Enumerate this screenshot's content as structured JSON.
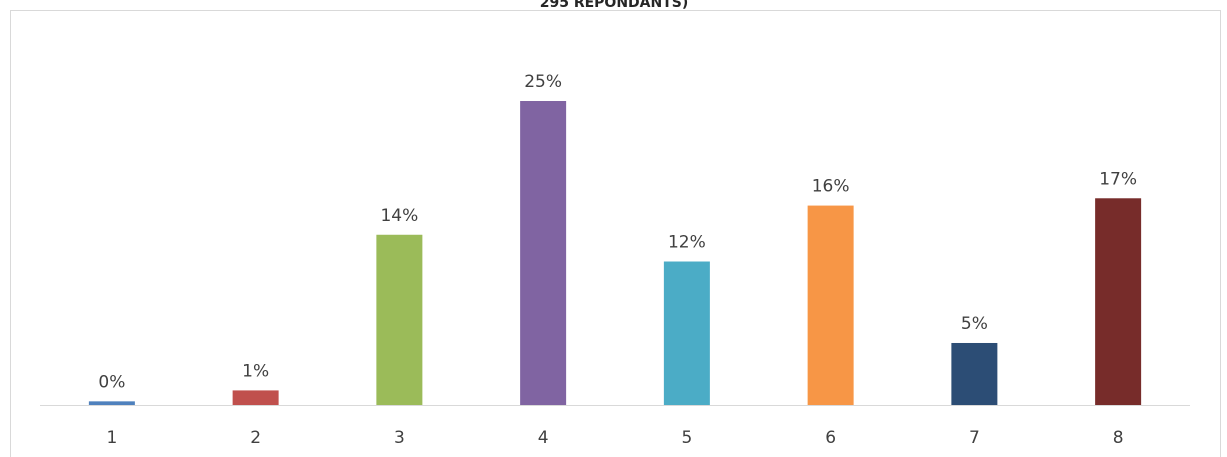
{
  "chart_data": {
    "type": "bar",
    "title": "295 REPONDANTS)",
    "categories": [
      "1",
      "2",
      "3",
      "4",
      "5",
      "6",
      "7",
      "8"
    ],
    "values": [
      0.3,
      1.2,
      14,
      25,
      11.8,
      16.4,
      5.1,
      17
    ],
    "value_labels": [
      "0%",
      "1%",
      "14%",
      "25%",
      "12%",
      "16%",
      "5%",
      "17%"
    ],
    "colors": [
      "#4f81bd",
      "#c0504d",
      "#9bbb59",
      "#8064a2",
      "#4bacc6",
      "#f79646",
      "#2c4d75",
      "#772c2a"
    ]
  }
}
